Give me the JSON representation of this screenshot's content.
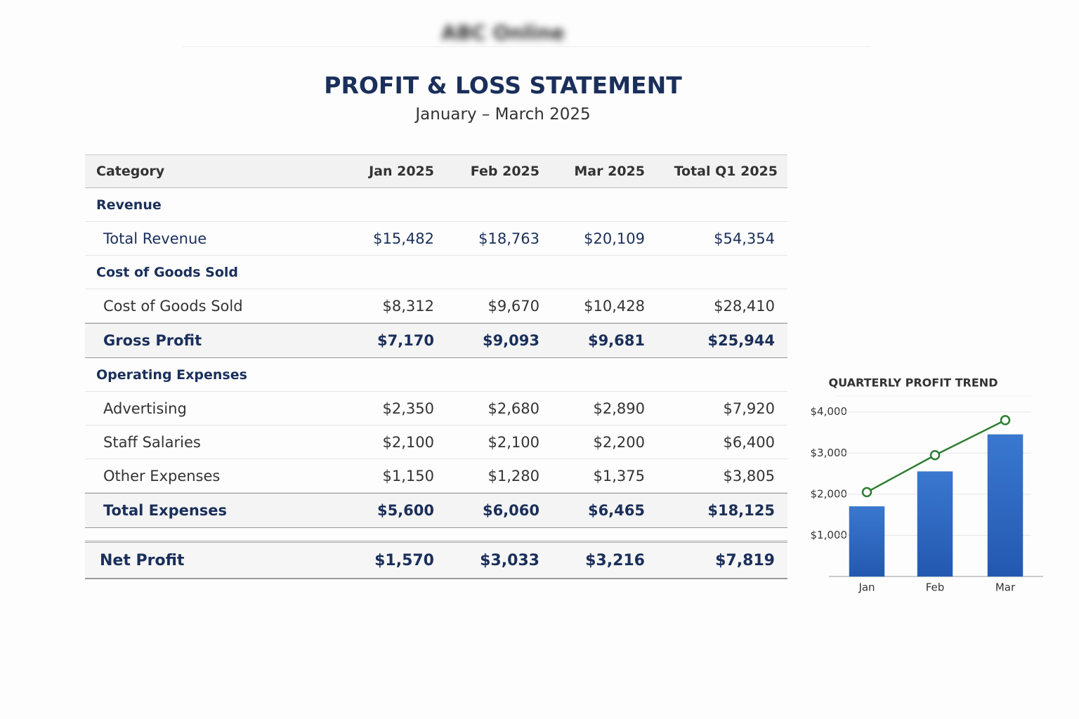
{
  "header": {
    "logo": "ABC Online",
    "title": "PROFIT & LOSS STATEMENT",
    "subtitle": "January – March 2025"
  },
  "table": {
    "columns": [
      "Category",
      "Jan 2025",
      "Feb 2025",
      "Mar 2025",
      "Total Q1 2025"
    ],
    "rows": [
      [
        "Revenue"
      ],
      [
        "Total Revenue",
        "$15,482",
        "$18,763",
        "$20,109",
        "$54,354"
      ],
      [
        "Cost of Goods Sold"
      ],
      [
        "Cost of Goods Sold",
        "$8,312",
        "$9,670",
        "$10,428",
        "$28,410"
      ],
      [
        "Gross Profit",
        "$7,170",
        "$9,093",
        "$9,681",
        "$25,944"
      ],
      [
        "Operating Expenses"
      ],
      [
        "Advertising",
        "$2,350",
        "$2,680",
        "$2,890",
        "$7,920"
      ],
      [
        "Staff Salaries",
        "$2,100",
        "$2,100",
        "$2,200",
        "$6,400"
      ],
      [
        "Other Expenses",
        "$1,150",
        "$1,280",
        "$1,375",
        "$3,805"
      ],
      [
        "Total Expenses",
        "$5,600",
        "$6,060",
        "$6,465",
        "$18,125"
      ],
      [
        "Net Profit",
        "$1,570",
        "$3,033",
        "$3,216",
        "$7,819"
      ]
    ]
  },
  "chart_data": {
    "type": "bar",
    "title": "QUARTERLY PROFIT TREND",
    "categories": [
      "Jan",
      "Feb",
      "Mar"
    ],
    "series": [
      {
        "type": "bar",
        "color": "#2d68c0",
        "values": [
          1700,
          2550,
          3450
        ]
      },
      {
        "type": "line",
        "color": "#2e7d32",
        "values": [
          2050,
          2950,
          3800
        ]
      }
    ],
    "ylim": [
      0,
      4200
    ],
    "yticks": [
      {
        "value": 1000,
        "label": "$1,000"
      },
      {
        "value": 2000,
        "label": "$2,000"
      },
      {
        "value": 3000,
        "label": "$3,000"
      },
      {
        "value": 4000,
        "label": "$4,000"
      }
    ],
    "grid": true
  }
}
